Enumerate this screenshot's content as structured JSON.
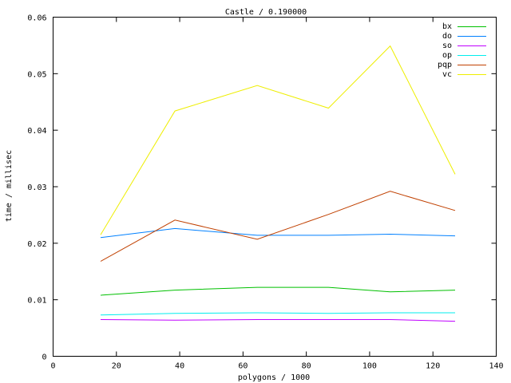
{
  "chart_data": {
    "type": "line",
    "title": "Castle / 0.190000",
    "xlabel": "polygons / 1000",
    "ylabel": "time / millisec",
    "xlim": [
      0,
      140
    ],
    "ylim": [
      0,
      0.06
    ],
    "xticks": [
      0,
      20,
      40,
      60,
      80,
      100,
      120,
      140
    ],
    "yticks": [
      0,
      0.01,
      0.02,
      0.03,
      0.04,
      0.05,
      0.06
    ],
    "ytick_labels": [
      "0",
      "0.01",
      "0.02",
      "0.03",
      "0.04",
      "0.05",
      "0.06"
    ],
    "grid": false,
    "legend_position": "top-right",
    "x": [
      15,
      38.5,
      64.5,
      87,
      106.5,
      127
    ],
    "series": [
      {
        "name": "bx",
        "color": "#00c000",
        "values": [
          0.0108,
          0.0117,
          0.0122,
          0.0122,
          0.0114,
          0.0117
        ]
      },
      {
        "name": "do",
        "color": "#0080ff",
        "values": [
          0.021,
          0.0226,
          0.0214,
          0.0214,
          0.0216,
          0.0213
        ]
      },
      {
        "name": "so",
        "color": "#c000ff",
        "values": [
          0.0065,
          0.0064,
          0.0065,
          0.0065,
          0.0065,
          0.0062
        ]
      },
      {
        "name": "op",
        "color": "#00eeee",
        "values": [
          0.0073,
          0.0076,
          0.0077,
          0.0076,
          0.0077,
          0.0077
        ]
      },
      {
        "name": "pqp",
        "color": "#c04000",
        "values": [
          0.0168,
          0.0241,
          0.0207,
          0.0251,
          0.0292,
          0.0258
        ]
      },
      {
        "name": "vc",
        "color": "#eeee00",
        "values": [
          0.0215,
          0.0434,
          0.0479,
          0.0439,
          0.0549,
          0.0322
        ]
      }
    ]
  }
}
